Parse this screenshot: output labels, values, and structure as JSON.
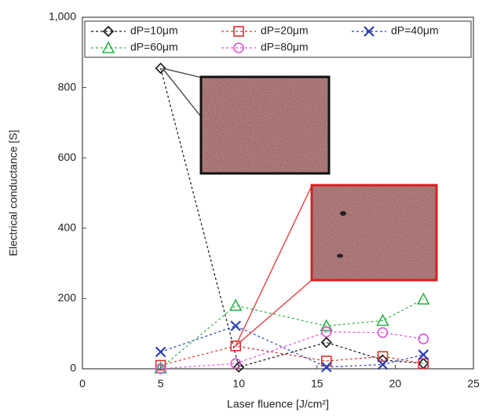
{
  "chart_data": {
    "type": "line",
    "x_label": "Laser fluence [J/cm²]",
    "y_label": "Electrical conductance [S]",
    "xlim": [
      0,
      25
    ],
    "xticks": [
      0,
      5,
      10,
      15,
      20,
      25
    ],
    "ylim": [
      0,
      1000
    ],
    "yticks": [
      0,
      200,
      400,
      600,
      800,
      {
        "value": 1000,
        "label": "1,000"
      }
    ],
    "legend": "top",
    "series": [
      {
        "name": "dP=10μm",
        "color": "#111111",
        "marker": "diamond",
        "x": [
          5,
          10,
          15.6,
          19.2,
          21.8
        ],
        "values": [
          855,
          5,
          75,
          25,
          15
        ]
      },
      {
        "name": "dP=20μm",
        "color": "#d93030",
        "marker": "square",
        "x": [
          5,
          9.8,
          15.6,
          19.2,
          21.8
        ],
        "values": [
          10,
          65,
          22,
          35,
          15
        ]
      },
      {
        "name": "dP=40μm",
        "color": "#2a3fb5",
        "marker": "x",
        "x": [
          5,
          9.8,
          15.6,
          19.2,
          21.8
        ],
        "values": [
          48,
          122,
          5,
          12,
          40
        ]
      },
      {
        "name": "dP=60μm",
        "color": "#2fb34a",
        "marker": "triangle",
        "x": [
          5,
          9.8,
          15.6,
          19.2,
          21.8
        ],
        "values": [
          2,
          180,
          122,
          137,
          198
        ]
      },
      {
        "name": "dP=80μm",
        "color": "#e050d8",
        "marker": "circle",
        "x": [
          5,
          9.8,
          15.6,
          19.2,
          21.8
        ],
        "values": [
          0,
          15,
          105,
          103,
          85
        ]
      }
    ]
  }
}
